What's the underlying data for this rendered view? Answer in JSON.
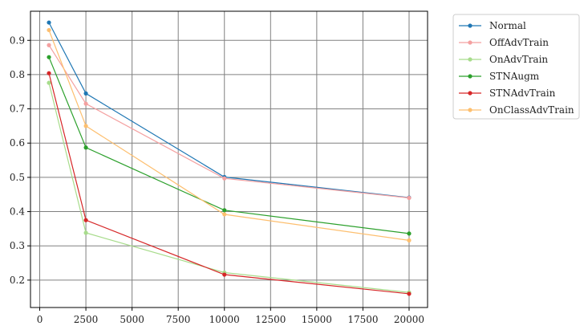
{
  "chart_data": {
    "type": "line",
    "x": [
      500,
      2500,
      10000,
      20000
    ],
    "xlim": [
      -500,
      21000
    ],
    "ylim": [
      0.12,
      0.985
    ],
    "xticks": [
      0,
      2500,
      5000,
      7500,
      10000,
      12500,
      15000,
      17500,
      20000
    ],
    "yticks": [
      0.2,
      0.3,
      0.4,
      0.5,
      0.6,
      0.7,
      0.8,
      0.9
    ],
    "grid": true,
    "legend_position": "outside-top-right",
    "series": [
      {
        "name": "Normal",
        "color": "#1f77b4",
        "values": [
          0.952,
          0.745,
          0.501,
          0.441
        ]
      },
      {
        "name": "OffAdvTrain",
        "color": "#f4a0a0",
        "values": [
          0.886,
          0.715,
          0.497,
          0.44
        ]
      },
      {
        "name": "OnAdvTrain",
        "color": "#a8dc8c",
        "values": [
          0.776,
          0.338,
          0.222,
          0.164
        ]
      },
      {
        "name": "STNAugm",
        "color": "#2ca02c",
        "values": [
          0.851,
          0.587,
          0.404,
          0.336
        ]
      },
      {
        "name": "STNAdvTrain",
        "color": "#d62728",
        "values": [
          0.804,
          0.375,
          0.216,
          0.16
        ]
      },
      {
        "name": "OnClassAdvTrain",
        "color": "#fdbf6f",
        "values": [
          0.93,
          0.65,
          0.392,
          0.316
        ]
      }
    ]
  }
}
